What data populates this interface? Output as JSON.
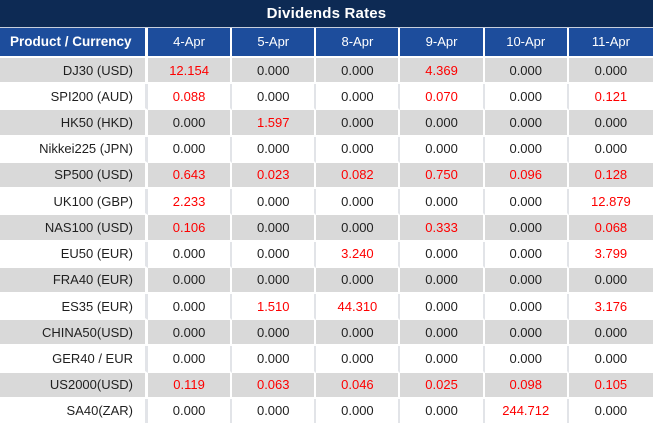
{
  "title": "Dividends Rates",
  "colors": {
    "title_bg": "#0d2a54",
    "header_bg": "#1d4d9c",
    "stripe_bg": "#d9d9d9",
    "white_bg": "#ffffff",
    "value_red": "#fe0000",
    "value_black": "#1f1f1f",
    "header_text": "#ffffff"
  },
  "table": {
    "product_header": "Product / Currency",
    "date_headers": [
      "4-Apr",
      "5-Apr",
      "8-Apr",
      "9-Apr",
      "10-Apr",
      "11-Apr"
    ],
    "rows": [
      {
        "product": "DJ30 (USD)",
        "values": [
          {
            "v": "12.154",
            "red": true
          },
          {
            "v": "0.000",
            "red": false
          },
          {
            "v": "0.000",
            "red": false
          },
          {
            "v": "4.369",
            "red": true
          },
          {
            "v": "0.000",
            "red": false
          },
          {
            "v": "0.000",
            "red": false
          }
        ]
      },
      {
        "product": "SPI200 (AUD)",
        "values": [
          {
            "v": "0.088",
            "red": true
          },
          {
            "v": "0.000",
            "red": false
          },
          {
            "v": "0.000",
            "red": false
          },
          {
            "v": "0.070",
            "red": true
          },
          {
            "v": "0.000",
            "red": false
          },
          {
            "v": "0.121",
            "red": true
          }
        ]
      },
      {
        "product": "HK50 (HKD)",
        "values": [
          {
            "v": "0.000",
            "red": false
          },
          {
            "v": "1.597",
            "red": true
          },
          {
            "v": "0.000",
            "red": false
          },
          {
            "v": "0.000",
            "red": false
          },
          {
            "v": "0.000",
            "red": false
          },
          {
            "v": "0.000",
            "red": false
          }
        ]
      },
      {
        "product": "Nikkei225 (JPN)",
        "values": [
          {
            "v": "0.000",
            "red": false
          },
          {
            "v": "0.000",
            "red": false
          },
          {
            "v": "0.000",
            "red": false
          },
          {
            "v": "0.000",
            "red": false
          },
          {
            "v": "0.000",
            "red": false
          },
          {
            "v": "0.000",
            "red": false
          }
        ]
      },
      {
        "product": "SP500 (USD)",
        "values": [
          {
            "v": "0.643",
            "red": true
          },
          {
            "v": "0.023",
            "red": true
          },
          {
            "v": "0.082",
            "red": true
          },
          {
            "v": "0.750",
            "red": true
          },
          {
            "v": "0.096",
            "red": true
          },
          {
            "v": "0.128",
            "red": true
          }
        ]
      },
      {
        "product": "UK100 (GBP)",
        "values": [
          {
            "v": "2.233",
            "red": true
          },
          {
            "v": "0.000",
            "red": false
          },
          {
            "v": "0.000",
            "red": false
          },
          {
            "v": "0.000",
            "red": false
          },
          {
            "v": "0.000",
            "red": false
          },
          {
            "v": "12.879",
            "red": true
          }
        ]
      },
      {
        "product": "NAS100 (USD)",
        "values": [
          {
            "v": "0.106",
            "red": true
          },
          {
            "v": "0.000",
            "red": false
          },
          {
            "v": "0.000",
            "red": false
          },
          {
            "v": "0.333",
            "red": true
          },
          {
            "v": "0.000",
            "red": false
          },
          {
            "v": "0.068",
            "red": true
          }
        ]
      },
      {
        "product": "EU50 (EUR)",
        "values": [
          {
            "v": "0.000",
            "red": false
          },
          {
            "v": "0.000",
            "red": false
          },
          {
            "v": "3.240",
            "red": true
          },
          {
            "v": "0.000",
            "red": false
          },
          {
            "v": "0.000",
            "red": false
          },
          {
            "v": "3.799",
            "red": true
          }
        ]
      },
      {
        "product": "FRA40 (EUR)",
        "values": [
          {
            "v": "0.000",
            "red": false
          },
          {
            "v": "0.000",
            "red": false
          },
          {
            "v": "0.000",
            "red": false
          },
          {
            "v": "0.000",
            "red": false
          },
          {
            "v": "0.000",
            "red": false
          },
          {
            "v": "0.000",
            "red": false
          }
        ]
      },
      {
        "product": "ES35 (EUR)",
        "values": [
          {
            "v": "0.000",
            "red": false
          },
          {
            "v": "1.510",
            "red": true
          },
          {
            "v": "44.310",
            "red": true
          },
          {
            "v": "0.000",
            "red": false
          },
          {
            "v": "0.000",
            "red": false
          },
          {
            "v": "3.176",
            "red": true
          }
        ]
      },
      {
        "product": "CHINA50(USD)",
        "values": [
          {
            "v": "0.000",
            "red": false
          },
          {
            "v": "0.000",
            "red": false
          },
          {
            "v": "0.000",
            "red": false
          },
          {
            "v": "0.000",
            "red": false
          },
          {
            "v": "0.000",
            "red": false
          },
          {
            "v": "0.000",
            "red": false
          }
        ]
      },
      {
        "product": "GER40 / EUR",
        "values": [
          {
            "v": "0.000",
            "red": false
          },
          {
            "v": "0.000",
            "red": false
          },
          {
            "v": "0.000",
            "red": false
          },
          {
            "v": "0.000",
            "red": false
          },
          {
            "v": "0.000",
            "red": false
          },
          {
            "v": "0.000",
            "red": false
          }
        ]
      },
      {
        "product": "US2000(USD)",
        "values": [
          {
            "v": "0.119",
            "red": true
          },
          {
            "v": "0.063",
            "red": true
          },
          {
            "v": "0.046",
            "red": true
          },
          {
            "v": "0.025",
            "red": true
          },
          {
            "v": "0.098",
            "red": true
          },
          {
            "v": "0.105",
            "red": true
          }
        ]
      },
      {
        "product": "SA40(ZAR)",
        "values": [
          {
            "v": "0.000",
            "red": false
          },
          {
            "v": "0.000",
            "red": false
          },
          {
            "v": "0.000",
            "red": false
          },
          {
            "v": "0.000",
            "red": false
          },
          {
            "v": "244.712",
            "red": true
          },
          {
            "v": "0.000",
            "red": false
          }
        ]
      }
    ]
  }
}
